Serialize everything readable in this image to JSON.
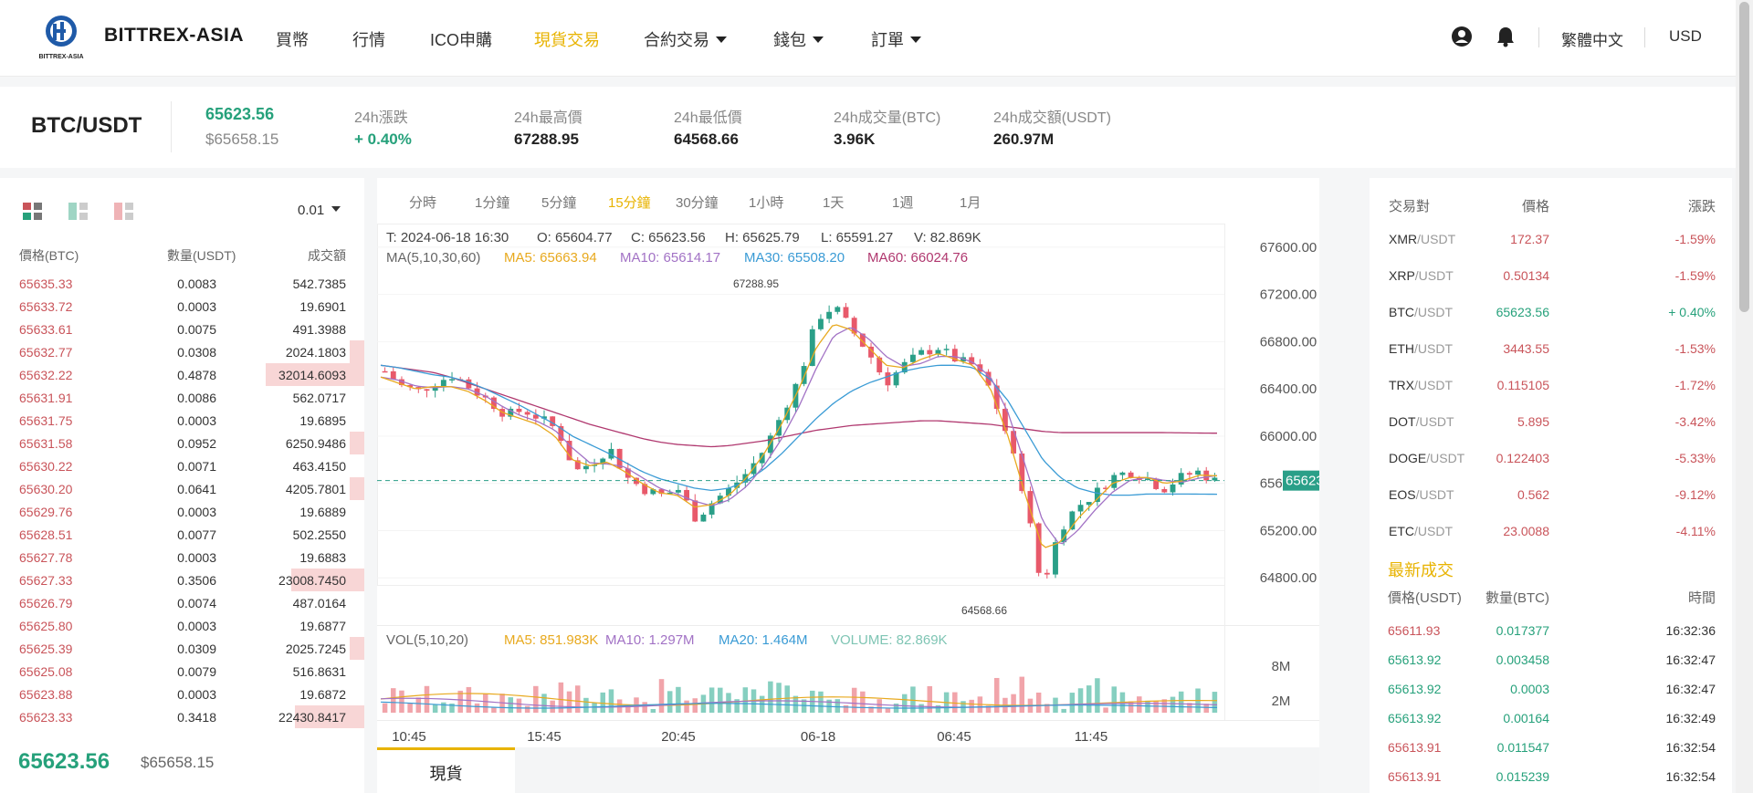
{
  "brand": {
    "name": "BITTREX-ASIA",
    "logo_text": "BITTREX-ASIA"
  },
  "nav": {
    "items": [
      {
        "label": "買幣",
        "dropdown": false,
        "active": false
      },
      {
        "label": "行情",
        "dropdown": false,
        "active": false
      },
      {
        "label": "ICO申購",
        "dropdown": false,
        "active": false
      },
      {
        "label": "現貨交易",
        "dropdown": false,
        "active": true
      },
      {
        "label": "合約交易",
        "dropdown": true,
        "active": false
      },
      {
        "label": "錢包",
        "dropdown": true,
        "active": false
      },
      {
        "label": "訂單",
        "dropdown": true,
        "active": false
      }
    ],
    "language": "繁體中文",
    "currency": "USD",
    "icons": [
      "user-icon",
      "bell-icon"
    ]
  },
  "ticker": {
    "pair": "BTC/USDT",
    "last_price": "65623.56",
    "last_price_usd": "$65658.15",
    "change_label": "24h漲跌",
    "change_value": "+ 0.40%",
    "high_label": "24h最高價",
    "high_value": "67288.95",
    "low_label": "24h最低價",
    "low_value": "64568.66",
    "vol_btc_label": "24h成交量(BTC)",
    "vol_btc_value": "3.96K",
    "vol_usdt_label": "24h成交額(USDT)",
    "vol_usdt_value": "260.97M"
  },
  "orderbook": {
    "precision": "0.01",
    "headers": {
      "price": "價格(BTC)",
      "amount": "數量(USDT)",
      "total": "成交額"
    },
    "rows": [
      {
        "price": "65635.33",
        "amount": "0.0083",
        "total": "542.7385",
        "depth": 0.0
      },
      {
        "price": "65633.72",
        "amount": "0.0003",
        "total": "19.6901",
        "depth": 0.0
      },
      {
        "price": "65633.61",
        "amount": "0.0075",
        "total": "491.3988",
        "depth": 0.0
      },
      {
        "price": "65632.77",
        "amount": "0.0308",
        "total": "2024.1803",
        "depth": 0.04
      },
      {
        "price": "65632.22",
        "amount": "0.4878",
        "total": "32014.6093",
        "depth": 0.27
      },
      {
        "price": "65631.91",
        "amount": "0.0086",
        "total": "562.0717",
        "depth": 0.0
      },
      {
        "price": "65631.75",
        "amount": "0.0003",
        "total": "19.6895",
        "depth": 0.0
      },
      {
        "price": "65631.58",
        "amount": "0.0952",
        "total": "6250.9486",
        "depth": 0.04
      },
      {
        "price": "65630.22",
        "amount": "0.0071",
        "total": "463.4150",
        "depth": 0.0
      },
      {
        "price": "65630.20",
        "amount": "0.0641",
        "total": "4205.7801",
        "depth": 0.04
      },
      {
        "price": "65629.76",
        "amount": "0.0003",
        "total": "19.6889",
        "depth": 0.0
      },
      {
        "price": "65628.51",
        "amount": "0.0077",
        "total": "502.2550",
        "depth": 0.0
      },
      {
        "price": "65627.78",
        "amount": "0.0003",
        "total": "19.6883",
        "depth": 0.0
      },
      {
        "price": "65627.33",
        "amount": "0.3506",
        "total": "23008.7450",
        "depth": 0.2
      },
      {
        "price": "65626.79",
        "amount": "0.0074",
        "total": "487.0164",
        "depth": 0.0
      },
      {
        "price": "65625.80",
        "amount": "0.0003",
        "total": "19.6877",
        "depth": 0.0
      },
      {
        "price": "65625.39",
        "amount": "0.0309",
        "total": "2025.7245",
        "depth": 0.04
      },
      {
        "price": "65625.08",
        "amount": "0.0079",
        "total": "516.8631",
        "depth": 0.0
      },
      {
        "price": "65623.88",
        "amount": "0.0003",
        "total": "19.6872",
        "depth": 0.0
      },
      {
        "price": "65623.33",
        "amount": "0.3418",
        "total": "22430.8417",
        "depth": 0.19
      }
    ],
    "last_price": "65623.56",
    "last_price_usd": "$65658.15"
  },
  "timeframes": [
    {
      "label": "分時",
      "active": false
    },
    {
      "label": "1分鐘",
      "active": false
    },
    {
      "label": "5分鐘",
      "active": false
    },
    {
      "label": "15分鐘",
      "active": true
    },
    {
      "label": "30分鐘",
      "active": false
    },
    {
      "label": "1小時",
      "active": false
    },
    {
      "label": "1天",
      "active": false
    },
    {
      "label": "1週",
      "active": false
    },
    {
      "label": "1月",
      "active": false
    }
  ],
  "chart_info": {
    "time": "T: 2024-06-18 16:30",
    "open": "O: 65604.77",
    "close": "C: 65623.56",
    "high": "H: 65625.79",
    "low": "L: 65591.27",
    "volume": "V: 82.869K",
    "ma_label": "MA(5,10,30,60)",
    "ma5": "MA5: 65663.94",
    "ma10": "MA10: 65614.17",
    "ma30": "MA30: 65508.20",
    "ma60": "MA60: 66024.76",
    "vol_label": "VOL(5,10,20)",
    "vma5": "MA5: 851.983K",
    "vma10": "MA10: 1.297M",
    "vma20": "MA20: 1.464M",
    "volume_total": "VOLUME: 82.869K",
    "high_marker": "67288.95",
    "low_marker": "64568.66",
    "current_price_tag": "65623.56"
  },
  "chart_data": {
    "type": "candlestick",
    "y_ticks": [
      "67600.00",
      "67200.00",
      "66800.00",
      "66400.00",
      "66000.00",
      "65600.00",
      "65200.00",
      "64800.00"
    ],
    "ylim": [
      64400,
      67800
    ],
    "vol_ticks": [
      "8M",
      "2M"
    ],
    "x_ticks": [
      "10:45",
      "15:45",
      "20:45",
      "06-18",
      "06:45",
      "11:45"
    ],
    "close_path": [
      66550,
      66420,
      66380,
      66460,
      66520,
      66400,
      66300,
      66180,
      66220,
      66150,
      66050,
      65700,
      65780,
      65900,
      65650,
      65550,
      65500,
      65550,
      65300,
      65450,
      65560,
      65700,
      65900,
      66200,
      66500,
      67000,
      67100,
      66900,
      66700,
      66450,
      66600,
      66700,
      66750,
      66650,
      66600,
      66400,
      66000,
      65500,
      64700,
      65200,
      65400,
      65500,
      65650,
      65700,
      65650,
      65550,
      65650,
      65700,
      65623
    ],
    "ma5_path": [
      66500,
      66450,
      66400,
      66420,
      66420,
      66380,
      66300,
      66200,
      66150,
      66100,
      66000,
      65800,
      65750,
      65780,
      65700,
      65600,
      65520,
      65500,
      65400,
      65420,
      65500,
      65650,
      65850,
      66100,
      66400,
      66750,
      66950,
      66900,
      66750,
      66600,
      66580,
      66650,
      66700,
      66650,
      66600,
      66400,
      66000,
      65500,
      65050,
      65100,
      65300,
      65450,
      65600,
      65650,
      65650,
      65600,
      65620,
      65670,
      65664
    ],
    "ma30_path": [
      66600,
      66580,
      66550,
      66520,
      66500,
      66460,
      66400,
      66330,
      66260,
      66180,
      66100,
      66000,
      65930,
      65860,
      65780,
      65700,
      65640,
      65600,
      65560,
      65540,
      65560,
      65620,
      65720,
      65850,
      66000,
      66150,
      66280,
      66380,
      66450,
      66500,
      66550,
      66580,
      66600,
      66600,
      66580,
      66480,
      66300,
      66050,
      65800,
      65650,
      65560,
      65520,
      65500,
      65500,
      65510,
      65510,
      65510,
      65509,
      65508
    ],
    "ma60_path": [
      66600,
      66580,
      66560,
      66540,
      66500,
      66450,
      66400,
      66350,
      66300,
      66250,
      66200,
      66150,
      66100,
      66060,
      66020,
      65980,
      65950,
      65930,
      65920,
      65910,
      65920,
      65940,
      65960,
      65990,
      66020,
      66050,
      66070,
      66090,
      66100,
      66110,
      66120,
      66130,
      66130,
      66120,
      66110,
      66100,
      66080,
      66060,
      66040,
      66030,
      66030,
      66030,
      66030,
      66030,
      66030,
      66030,
      66028,
      66026,
      66025
    ]
  },
  "bottom_tab": "現貨",
  "market": {
    "headers": {
      "pair": "交易對",
      "price": "價格",
      "change": "漲跌"
    },
    "rows": [
      {
        "base": "XMR",
        "quote": "/USDT",
        "price": "172.37",
        "change": "-1.59%",
        "up": false
      },
      {
        "base": "XRP",
        "quote": "/USDT",
        "price": "0.50134",
        "change": "-1.59%",
        "up": false
      },
      {
        "base": "BTC",
        "quote": "/USDT",
        "price": "65623.56",
        "change": "+ 0.40%",
        "up": true
      },
      {
        "base": "ETH",
        "quote": "/USDT",
        "price": "3443.55",
        "change": "-1.53%",
        "up": false
      },
      {
        "base": "TRX",
        "quote": "/USDT",
        "price": "0.115105",
        "change": "-1.72%",
        "up": false
      },
      {
        "base": "DOT",
        "quote": "/USDT",
        "price": "5.895",
        "change": "-3.42%",
        "up": false
      },
      {
        "base": "DOGE",
        "quote": "/USDT",
        "price": "0.122403",
        "change": "-5.33%",
        "up": false
      },
      {
        "base": "EOS",
        "quote": "/USDT",
        "price": "0.562",
        "change": "-9.12%",
        "up": false
      },
      {
        "base": "ETC",
        "quote": "/USDT",
        "price": "23.0088",
        "change": "-4.11%",
        "up": false
      }
    ]
  },
  "trades": {
    "title": "最新成交",
    "headers": {
      "price": "價格(USDT)",
      "amount": "數量(BTC)",
      "time": "時間"
    },
    "rows": [
      {
        "price": "65611.93",
        "amount": "0.017377",
        "time": "16:32:36",
        "up": false
      },
      {
        "price": "65613.92",
        "amount": "0.003458",
        "time": "16:32:47",
        "up": true
      },
      {
        "price": "65613.92",
        "amount": "0.0003",
        "time": "16:32:47",
        "up": true
      },
      {
        "price": "65613.92",
        "amount": "0.00164",
        "time": "16:32:49",
        "up": true
      },
      {
        "price": "65613.91",
        "amount": "0.011547",
        "time": "16:32:54",
        "up": false
      },
      {
        "price": "65613.91",
        "amount": "0.015239",
        "time": "16:32:54",
        "up": false
      }
    ]
  },
  "colors": {
    "accent": "#e8b300",
    "up": "#26a17b",
    "down": "#c9545a",
    "ma5": "#e8a91e",
    "ma10": "#a272c5",
    "ma30": "#3a9bd5",
    "ma60": "#b0386f"
  }
}
